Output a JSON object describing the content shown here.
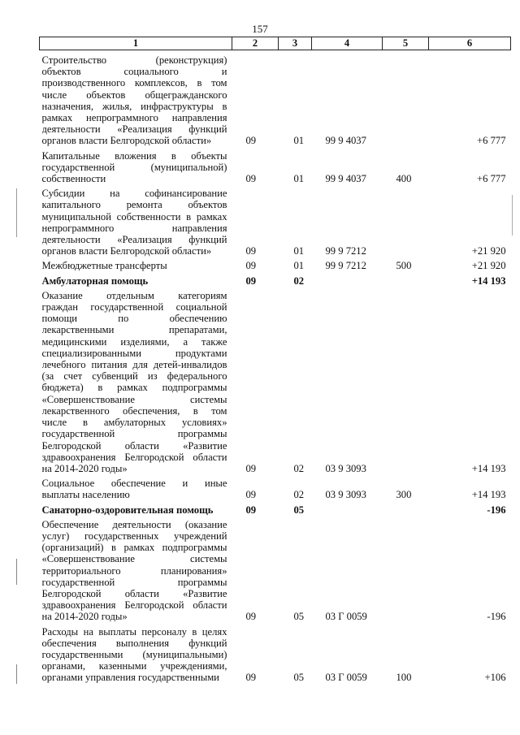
{
  "page_number": "157",
  "header": [
    "1",
    "2",
    "3",
    "4",
    "5",
    "6"
  ],
  "rows": [
    {
      "bold": false,
      "lines": [
        "Строительство (реконструкция)",
        "объектов социального и",
        "производственного комплексов, в том",
        "числе объектов общегражданского",
        "назначения, жилья, инфраструктуры в",
        "рамках непрограммного направления",
        "деятельности «Реализация функций",
        "органов власти Белгородской области»"
      ],
      "c2": "09",
      "c3": "01",
      "c4": "99 9 4037",
      "c5": "",
      "c6": "+6 777"
    },
    {
      "bold": false,
      "lines": [
        "Капитальные вложения в объекты",
        "государственной (муниципальной)",
        "собственности"
      ],
      "c2": "09",
      "c3": "01",
      "c4": "99 9 4037",
      "c5": "400",
      "c6": "+6 777"
    },
    {
      "bold": false,
      "lines": [
        "Субсидии на софинансирование",
        "капитального ремонта объектов",
        "муниципальной собственности в рамках",
        "непрограммного направления",
        "деятельности «Реализация функций",
        "органов власти Белгородской области»"
      ],
      "c2": "09",
      "c3": "01",
      "c4": "99 9 7212",
      "c5": "",
      "c6": "+21 920"
    },
    {
      "bold": false,
      "lines": [
        "Межбюджетные трансферты"
      ],
      "c2": "09",
      "c3": "01",
      "c4": "99 9 7212",
      "c5": "500",
      "c6": "+21 920"
    },
    {
      "bold": true,
      "lines": [
        "Амбулаторная помощь"
      ],
      "c2": "09",
      "c3": "02",
      "c4": "",
      "c5": "",
      "c6": "+14 193"
    },
    {
      "bold": false,
      "lines": [
        "Оказание отдельным категориям",
        "граждан государственной социальной",
        "помощи по обеспечению",
        "лекарственными препаратами,",
        "медицинскими изделиями, а также",
        "специализированными продуктами",
        "лечебного питания для детей-инвалидов",
        "(за счет субвенций из федерального",
        "бюджета) в рамках подпрограммы",
        "«Совершенствование системы",
        "лекарственного обеспечения, в том",
        "числе в амбулаторных условиях»",
        "государственной программы",
        "Белгородской области «Развитие",
        "здравоохранения Белгородской области",
        "на 2014-2020 годы»"
      ],
      "c2": "09",
      "c3": "02",
      "c4": "03 9 3093",
      "c5": "",
      "c6": "+14 193"
    },
    {
      "bold": false,
      "lines": [
        "Социальное обеспечение и иные",
        "выплаты населению"
      ],
      "c2": "09",
      "c3": "02",
      "c4": "03 9 3093",
      "c5": "300",
      "c6": "+14 193"
    },
    {
      "bold": true,
      "lines": [
        "Санаторно-оздоровительная помощь"
      ],
      "c2": "09",
      "c3": "05",
      "c4": "",
      "c5": "",
      "c6": "-196"
    },
    {
      "bold": false,
      "lines": [
        "Обеспечение деятельности (оказание",
        "услуг) государственных учреждений",
        "(организаций) в рамках подпрограммы",
        "«Совершенствование системы",
        "территориального планирования»",
        "государственной программы",
        "Белгородской области «Развитие",
        "здравоохранения Белгородской области",
        "на 2014-2020 годы»"
      ],
      "c2": "09",
      "c3": "05",
      "c4": "03 Г 0059",
      "c5": "",
      "c6": "-196"
    },
    {
      "bold": false,
      "lines": [
        "Расходы на выплаты персоналу в целях",
        "обеспечения выполнения функций",
        "государственными (муниципальными)",
        "органами, казенными учреждениями,",
        "органами управления государственными"
      ],
      "c2": "09",
      "c3": "05",
      "c4": "03 Г 0059",
      "c5": "100",
      "c6": "+106"
    }
  ]
}
